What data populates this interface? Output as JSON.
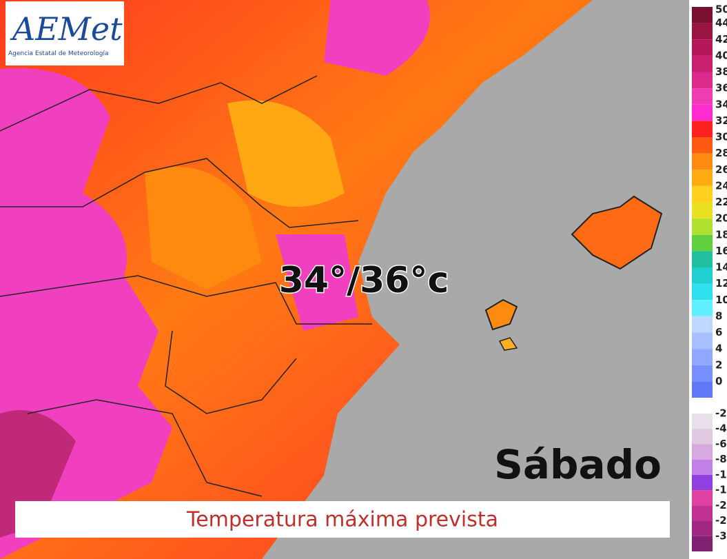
{
  "logo": {
    "name": "AEMet",
    "agency": "Agencia Estatal de Meteorología"
  },
  "forecast_label": "34°/36°c",
  "day": "Sábado",
  "caption": "Temperatura máxima prevista",
  "legend": {
    "positive": [
      {
        "label": "50",
        "color": "#7a1030"
      },
      {
        "label": "44",
        "color": "#9a1444"
      },
      {
        "label": "42",
        "color": "#b4185a"
      },
      {
        "label": "40",
        "color": "#c8206e"
      },
      {
        "label": "38",
        "color": "#dc2a8c"
      },
      {
        "label": "36",
        "color": "#f03cb4"
      },
      {
        "label": "34",
        "color": "#ff2ad0"
      },
      {
        "label": "32",
        "color": "#ff2020"
      },
      {
        "label": "30",
        "color": "#ff5a14"
      },
      {
        "label": "28",
        "color": "#ff8a10"
      },
      {
        "label": "26",
        "color": "#ffaa10"
      },
      {
        "label": "24",
        "color": "#ffd020"
      },
      {
        "label": "22",
        "color": "#e8e020"
      },
      {
        "label": "20",
        "color": "#b0e030"
      },
      {
        "label": "18",
        "color": "#60d040"
      },
      {
        "label": "16",
        "color": "#20c0a0"
      },
      {
        "label": "14",
        "color": "#20d0d0"
      },
      {
        "label": "12",
        "color": "#30e0f0"
      },
      {
        "label": "10",
        "color": "#60f0ff"
      },
      {
        "label": "8",
        "color": "#c0d8ff"
      },
      {
        "label": "6",
        "color": "#a8c0ff"
      },
      {
        "label": "4",
        "color": "#90a8ff"
      },
      {
        "label": "2",
        "color": "#7890ff"
      },
      {
        "label": "0",
        "color": "#6078f8"
      }
    ],
    "negative": [
      {
        "label": "-2",
        "color": "#e8e0e8"
      },
      {
        "label": "-4",
        "color": "#e0c8e0"
      },
      {
        "label": "-6",
        "color": "#d8a8e0"
      },
      {
        "label": "-8",
        "color": "#c080e8"
      },
      {
        "label": "-1",
        "color": "#9040e0"
      },
      {
        "label": "-1",
        "color": "#e040a0"
      },
      {
        "label": "-2",
        "color": "#c03090"
      },
      {
        "label": "-2",
        "color": "#a02880"
      },
      {
        "label": "-3",
        "color": "#802070"
      }
    ]
  }
}
